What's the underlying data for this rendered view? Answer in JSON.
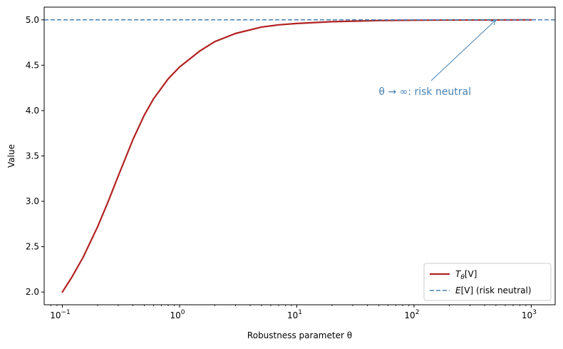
{
  "chart_data": {
    "type": "line",
    "xscale": "log",
    "xlim": [
      0.07,
      1600
    ],
    "ylim": [
      1.86,
      5.14
    ],
    "xlabel": "Robustness parameter θ",
    "ylabel": "Value",
    "x_ticks": [
      {
        "value": 0.1,
        "base": "10",
        "exp": "−1"
      },
      {
        "value": 1,
        "base": "10",
        "exp": "0"
      },
      {
        "value": 10,
        "base": "10",
        "exp": "1"
      },
      {
        "value": 100,
        "base": "10",
        "exp": "2"
      },
      {
        "value": 1000,
        "base": "10",
        "exp": "3"
      }
    ],
    "y_ticks": [
      {
        "value": 2.0,
        "label": "2.0"
      },
      {
        "value": 2.5,
        "label": "2.5"
      },
      {
        "value": 3.0,
        "label": "3.0"
      },
      {
        "value": 3.5,
        "label": "3.5"
      },
      {
        "value": 4.0,
        "label": "4.0"
      },
      {
        "value": 4.5,
        "label": "4.5"
      },
      {
        "value": 5.0,
        "label": "5.0"
      }
    ],
    "series": [
      {
        "name": "T_θ[V]",
        "style": "solid",
        "color": "#b22222",
        "x": [
          0.1,
          0.12,
          0.15,
          0.2,
          0.25,
          0.3,
          0.4,
          0.5,
          0.6,
          0.8,
          1.0,
          1.5,
          2,
          3,
          5,
          7,
          10,
          20,
          50,
          100,
          200,
          500,
          1000
        ],
        "y": [
          2.0,
          2.16,
          2.38,
          2.72,
          3.02,
          3.28,
          3.68,
          3.95,
          4.13,
          4.35,
          4.48,
          4.66,
          4.76,
          4.85,
          4.92,
          4.945,
          4.96,
          4.98,
          4.992,
          4.996,
          4.998,
          4.999,
          5.0
        ]
      },
      {
        "name": "E[V] (risk neutral)",
        "style": "dashed",
        "color": "#4682b4",
        "y_const": 5.0
      }
    ],
    "annotation": {
      "text": "θ → ∞: risk neutral",
      "xy": [
        500,
        5.0
      ],
      "text_xy": [
        50,
        4.21
      ],
      "color": "#4682b4"
    },
    "legend": {
      "placement": "lower-right",
      "entries": [
        {
          "main": "T",
          "sub": "θ",
          "rest": "[V]"
        },
        {
          "main": "E",
          "sub": "",
          "rest": "[V] (risk neutral)"
        }
      ]
    },
    "grid": false
  }
}
